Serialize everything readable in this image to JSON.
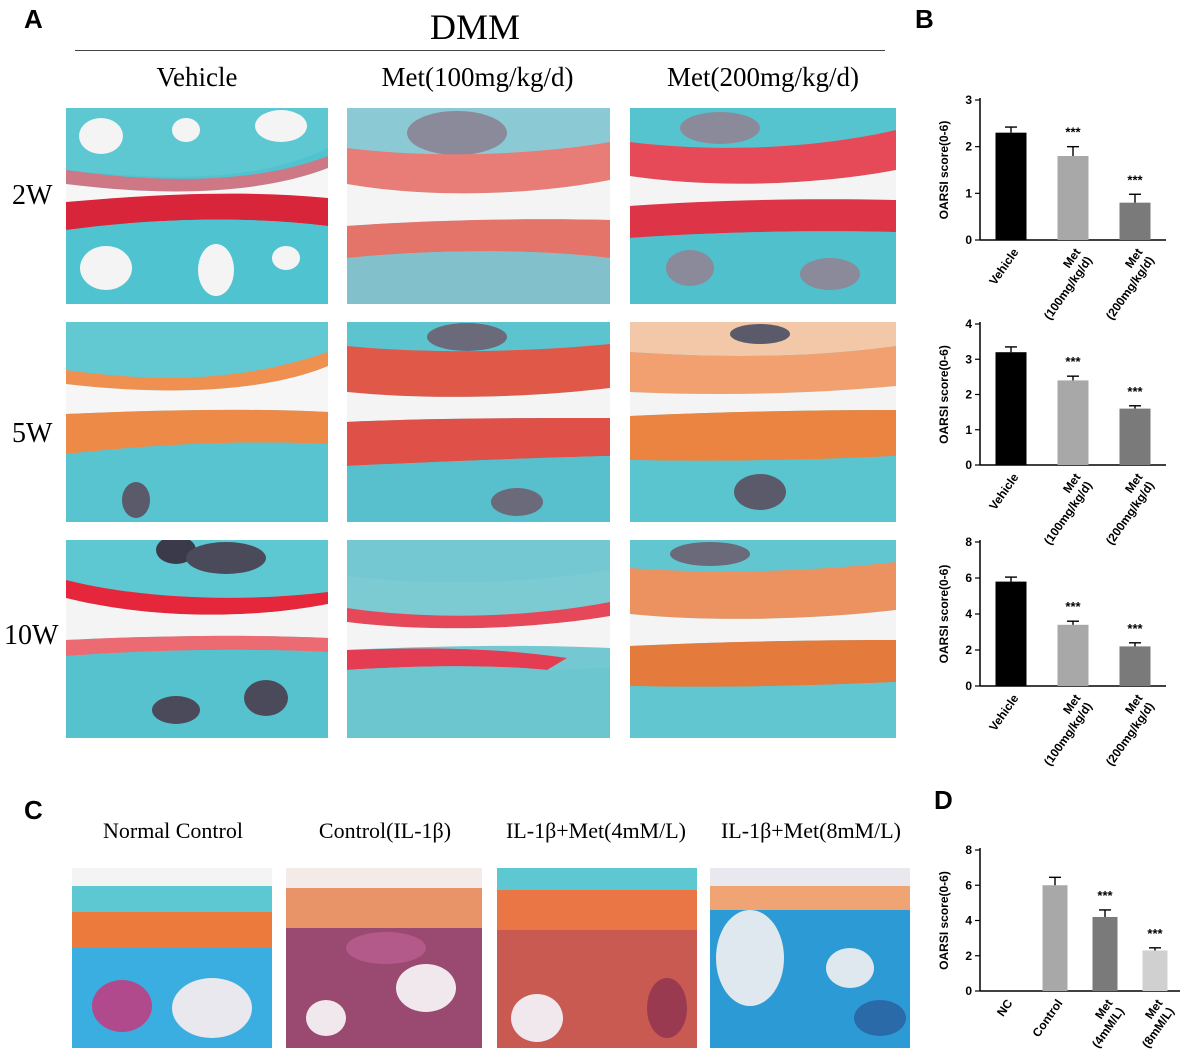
{
  "panels": {
    "a": "A",
    "b": "B",
    "c": "C",
    "d": "D"
  },
  "panel_a": {
    "group_title": "DMM",
    "columns": [
      "Vehicle",
      "Met(100mg/kg/d)",
      "Met(200mg/kg/d)"
    ],
    "rows": [
      "2W",
      "5W",
      "10W"
    ]
  },
  "panel_c": {
    "columns": [
      "Normal Control",
      "Control(IL-1β)",
      "IL-1β+Met(4mM/L)",
      "IL-1β+Met(8mM/L)"
    ]
  },
  "colors": {
    "cartilage_blue": "#5ec8d2",
    "safranin_red": "#e0505a",
    "orange_stain": "#ec8a4a",
    "bar_black": "#000000",
    "bar_lightgray": "#a8a8a8",
    "bar_midgray": "#7a7a7a",
    "bar_verylight": "#d0d0d0"
  },
  "chart_data": [
    {
      "type": "bar",
      "panel": "B",
      "ylabel": "OARSI score(0-6)",
      "categories": [
        "Vehicle",
        "Met\n(100mg/kg/d)",
        "Met\n(200mg/kg/d)"
      ],
      "values": [
        2.3,
        1.8,
        0.8
      ],
      "errors": [
        0.12,
        0.2,
        0.18
      ],
      "significance": [
        "",
        "***",
        "***"
      ],
      "colors": [
        "#000000",
        "#a8a8a8",
        "#7a7a7a"
      ],
      "ylim": [
        0,
        3
      ],
      "yticks": [
        0,
        1,
        2,
        3
      ]
    },
    {
      "type": "bar",
      "panel": "B",
      "ylabel": "OARSI score(0-6)",
      "categories": [
        "Vehicle",
        "Met\n(100mg/kg/d)",
        "Met\n(200mg/kg/d)"
      ],
      "values": [
        3.2,
        2.4,
        1.6
      ],
      "errors": [
        0.15,
        0.12,
        0.08
      ],
      "significance": [
        "",
        "***",
        "***"
      ],
      "colors": [
        "#000000",
        "#a8a8a8",
        "#7a7a7a"
      ],
      "ylim": [
        0,
        4
      ],
      "yticks": [
        0,
        1,
        2,
        3,
        4
      ]
    },
    {
      "type": "bar",
      "panel": "B",
      "ylabel": "OARSI score(0-6)",
      "categories": [
        "Vehicle",
        "Met\n(100mg/kg/d)",
        "Met\n(200mg/kg/d)"
      ],
      "values": [
        5.8,
        3.4,
        2.2
      ],
      "errors": [
        0.25,
        0.2,
        0.2
      ],
      "significance": [
        "",
        "***",
        "***"
      ],
      "colors": [
        "#000000",
        "#a8a8a8",
        "#7a7a7a"
      ],
      "ylim": [
        0,
        8
      ],
      "yticks": [
        0,
        2,
        4,
        6,
        8
      ]
    },
    {
      "type": "bar",
      "panel": "D",
      "ylabel": "OARSI score(0-6)",
      "categories": [
        "NC",
        "Control",
        "Met\n(4mM/L)",
        "Met\n(8mM/L)"
      ],
      "values": [
        0,
        6.0,
        4.2,
        2.3
      ],
      "errors": [
        0,
        0.45,
        0.4,
        0.15
      ],
      "significance": [
        "",
        "",
        "***",
        "***"
      ],
      "colors": [
        "#ffffff",
        "#a8a8a8",
        "#7a7a7a",
        "#d0d0d0"
      ],
      "ylim": [
        0,
        8
      ],
      "yticks": [
        0,
        2,
        4,
        6,
        8
      ]
    }
  ]
}
